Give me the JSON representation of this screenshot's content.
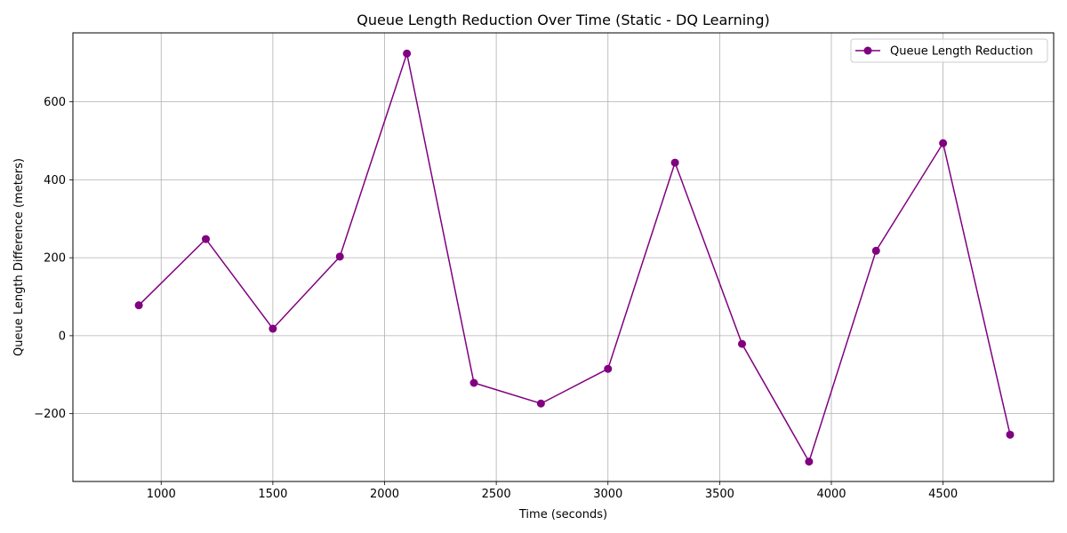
{
  "chart_data": {
    "type": "line",
    "title": "Queue Length Reduction Over Time (Static - DQ Learning)",
    "xlabel": "Time (seconds)",
    "ylabel": "Queue Length Difference (meters)",
    "x": [
      900,
      1200,
      1500,
      1800,
      2100,
      2400,
      2700,
      3000,
      3300,
      3600,
      3900,
      4200,
      4500,
      4800
    ],
    "series": [
      {
        "name": "Queue Length Reduction",
        "color": "#800080",
        "marker": "circle",
        "values": [
          78,
          248,
          18,
          203,
          724,
          -121,
          -174,
          -85,
          444,
          -21,
          -323,
          218,
          494,
          -254
        ]
      }
    ],
    "xlim": [
      605,
      4995
    ],
    "ylim": [
      -374,
      777
    ],
    "xticks": [
      1000,
      1500,
      2000,
      2500,
      3000,
      3500,
      4000,
      4500
    ],
    "yticks": [
      -200,
      0,
      200,
      400,
      600
    ],
    "ytick_labels": [
      "−200",
      "0",
      "200",
      "400",
      "600"
    ],
    "grid": true,
    "legend_position": "top-right"
  }
}
